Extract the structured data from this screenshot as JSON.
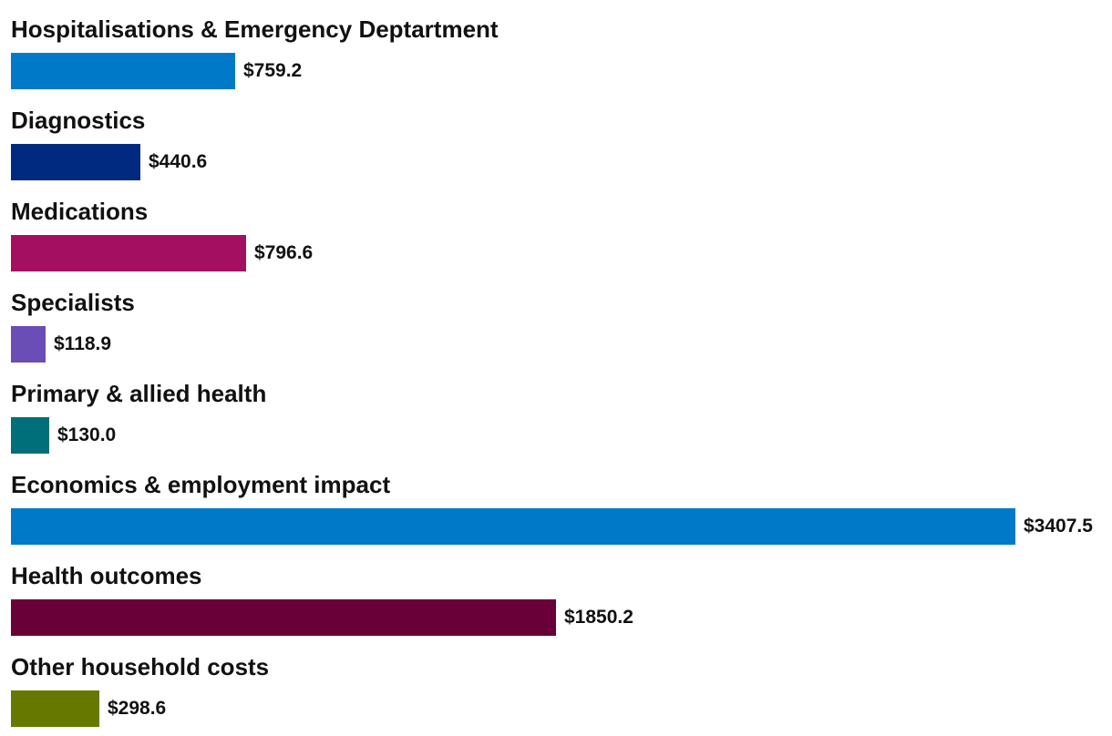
{
  "chart_data": {
    "type": "bar",
    "orientation": "horizontal",
    "title": "",
    "xlabel": "",
    "ylabel": "",
    "grid": false,
    "value_prefix": "$",
    "xlim": [
      0,
      3407.5
    ],
    "categories": [
      "Hospitalisations & Emergency Deptartment",
      "Diagnostics",
      "Medications",
      "Specialists",
      "Primary & allied health",
      "Economics & employment impact",
      "Health outcomes",
      "Other household costs"
    ],
    "values": [
      759.2,
      440.6,
      796.6,
      118.9,
      130.0,
      3407.5,
      1850.2,
      298.6
    ],
    "value_labels": [
      "$759.2",
      "$440.6",
      "$796.6",
      "$118.9",
      "$130.0",
      "$3407.5",
      "$1850.2",
      "$298.6"
    ],
    "colors": [
      "#0079c8",
      "#002a7f",
      "#a50f62",
      "#6b4db6",
      "#006f79",
      "#0079c8",
      "#6a0038",
      "#667800"
    ]
  }
}
